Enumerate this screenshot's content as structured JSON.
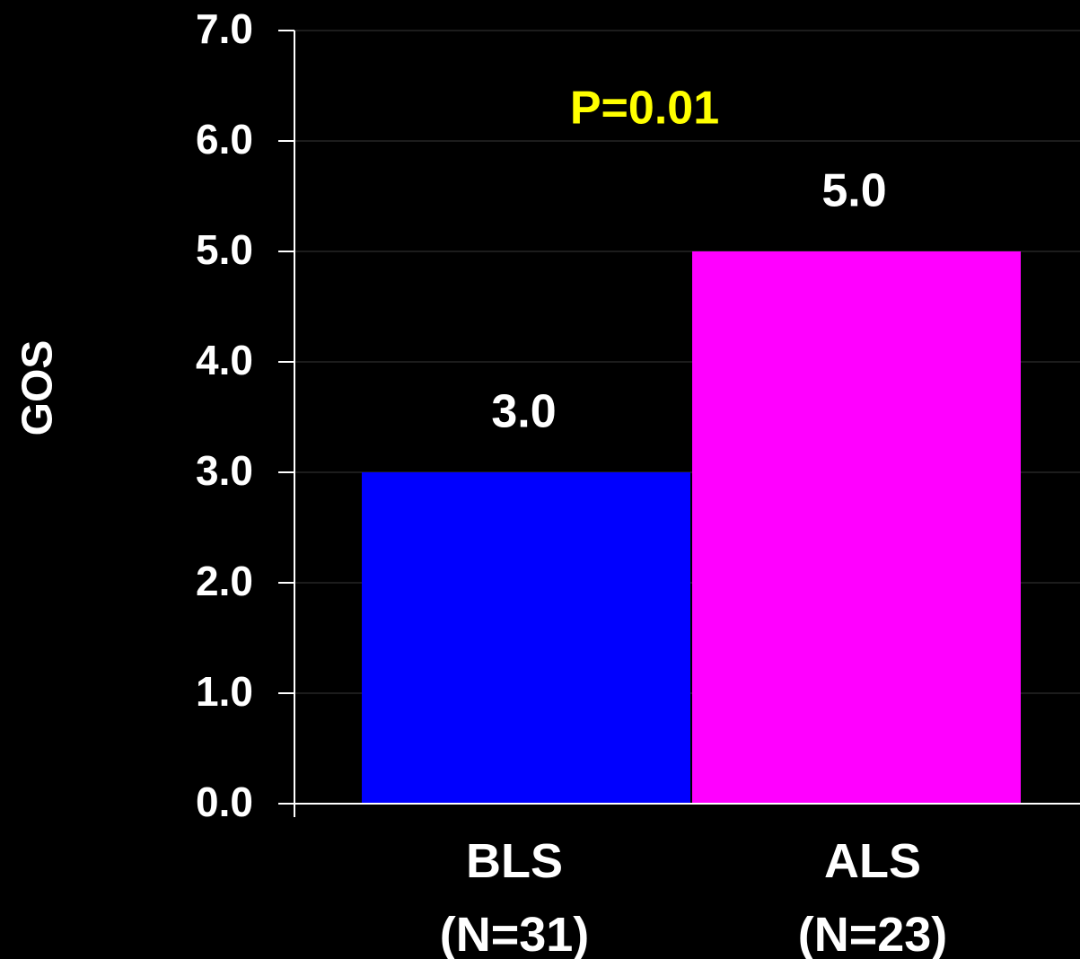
{
  "chart_data": {
    "type": "bar",
    "y_label": "GOS",
    "annotation": "P=0.01",
    "categories": [
      "BLS\n(N=31)",
      "ALS\n(N=23)"
    ],
    "values": [
      3.0,
      5.0
    ],
    "value_labels": [
      "3.0",
      "5.0"
    ],
    "colors": [
      "#0000ff",
      "#ff00ff"
    ],
    "ylim": [
      0,
      7
    ],
    "yticks": [
      {
        "value": 0,
        "label": "0.0"
      },
      {
        "value": 1,
        "label": "1.0"
      },
      {
        "value": 2,
        "label": "2.0"
      },
      {
        "value": 3,
        "label": "3.0"
      },
      {
        "value": 4,
        "label": "4.0"
      },
      {
        "value": 5,
        "label": "5.0"
      },
      {
        "value": 6,
        "label": "6.0"
      },
      {
        "value": 7,
        "label": "7.0"
      }
    ],
    "grid": true
  }
}
